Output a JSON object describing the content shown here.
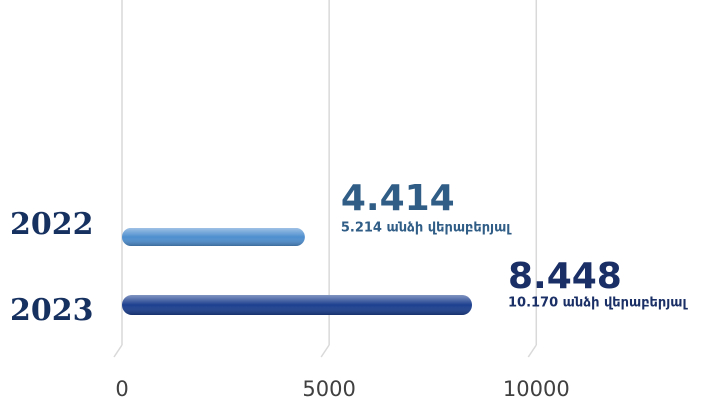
{
  "chart_data": {
    "type": "barh",
    "categories": [
      "2022",
      "2023"
    ],
    "values": [
      4414,
      8448
    ],
    "value_labels": [
      "4.414",
      "8.448"
    ],
    "annotations": [
      "5.214 անձի վերաբերյալ",
      "10.170 անձի վերաբերյալ"
    ],
    "colors": [
      "#4f8fcf",
      "#1c3f8f"
    ],
    "label_colors": [
      "#2f5d86",
      "#1a2f66"
    ],
    "xlim": [
      0,
      14000
    ],
    "xticks": [
      0,
      5000,
      10000
    ],
    "grid": true
  }
}
